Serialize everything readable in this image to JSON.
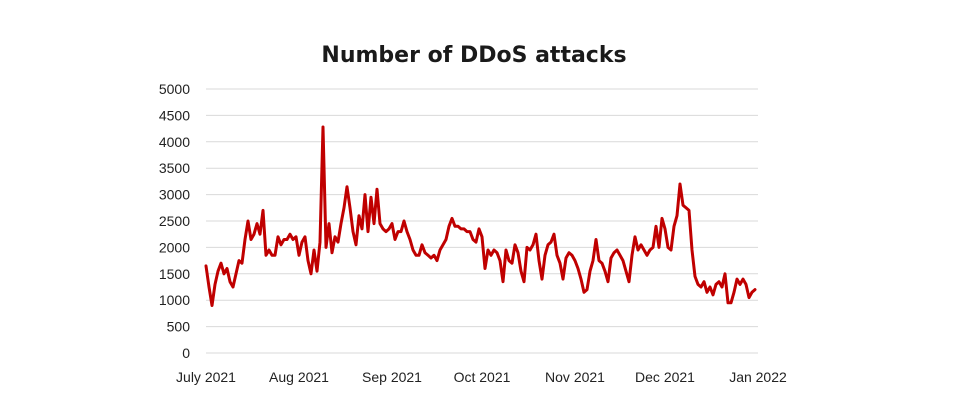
{
  "chart_data": {
    "type": "line",
    "title": "Number of DDoS attacks",
    "xlabel": "",
    "ylabel": "",
    "ylim": [
      0,
      5000
    ],
    "yticks": [
      0,
      500,
      1000,
      1500,
      2000,
      2500,
      3000,
      3500,
      4000,
      4500,
      5000
    ],
    "xlim": [
      "2021-07-01",
      "2022-01-01"
    ],
    "xticks": [
      {
        "date": "2021-07-01",
        "label": "July 2021"
      },
      {
        "date": "2021-08-01",
        "label": "Aug 2021"
      },
      {
        "date": "2021-09-01",
        "label": "Sep 2021"
      },
      {
        "date": "2021-10-01",
        "label": "Oct 2021"
      },
      {
        "date": "2021-11-01",
        "label": "Nov 2021"
      },
      {
        "date": "2021-12-01",
        "label": "Dec 2021"
      },
      {
        "date": "2022-01-01",
        "label": "Jan 2022"
      }
    ],
    "grid": true,
    "legend": "none",
    "series": [
      {
        "name": "",
        "color": "#c00000",
        "points": [
          [
            "2021-07-01",
            1650
          ],
          [
            "2021-07-02",
            1250
          ],
          [
            "2021-07-03",
            900
          ],
          [
            "2021-07-04",
            1300
          ],
          [
            "2021-07-05",
            1550
          ],
          [
            "2021-07-06",
            1700
          ],
          [
            "2021-07-07",
            1500
          ],
          [
            "2021-07-08",
            1600
          ],
          [
            "2021-07-09",
            1350
          ],
          [
            "2021-07-10",
            1250
          ],
          [
            "2021-07-11",
            1500
          ],
          [
            "2021-07-12",
            1750
          ],
          [
            "2021-07-13",
            1700
          ],
          [
            "2021-07-14",
            2150
          ],
          [
            "2021-07-15",
            2500
          ],
          [
            "2021-07-16",
            2150
          ],
          [
            "2021-07-17",
            2250
          ],
          [
            "2021-07-18",
            2450
          ],
          [
            "2021-07-19",
            2250
          ],
          [
            "2021-07-20",
            2700
          ],
          [
            "2021-07-21",
            1850
          ],
          [
            "2021-07-22",
            1950
          ],
          [
            "2021-07-23",
            1850
          ],
          [
            "2021-07-24",
            1850
          ],
          [
            "2021-07-25",
            2200
          ],
          [
            "2021-07-26",
            2050
          ],
          [
            "2021-07-27",
            2150
          ],
          [
            "2021-07-28",
            2150
          ],
          [
            "2021-07-29",
            2250
          ],
          [
            "2021-07-30",
            2150
          ],
          [
            "2021-07-31",
            2200
          ],
          [
            "2021-08-01",
            1850
          ],
          [
            "2021-08-02",
            2100
          ],
          [
            "2021-08-03",
            2200
          ],
          [
            "2021-08-04",
            1750
          ],
          [
            "2021-08-05",
            1500
          ],
          [
            "2021-08-06",
            1950
          ],
          [
            "2021-08-07",
            1550
          ],
          [
            "2021-08-08",
            2100
          ],
          [
            "2021-08-09",
            4280
          ],
          [
            "2021-08-10",
            2000
          ],
          [
            "2021-08-11",
            2450
          ],
          [
            "2021-08-12",
            1900
          ],
          [
            "2021-08-13",
            2200
          ],
          [
            "2021-08-14",
            2100
          ],
          [
            "2021-08-15",
            2450
          ],
          [
            "2021-08-16",
            2750
          ],
          [
            "2021-08-17",
            3150
          ],
          [
            "2021-08-18",
            2750
          ],
          [
            "2021-08-19",
            2300
          ],
          [
            "2021-08-20",
            2050
          ],
          [
            "2021-08-21",
            2600
          ],
          [
            "2021-08-22",
            2350
          ],
          [
            "2021-08-23",
            3000
          ],
          [
            "2021-08-24",
            2300
          ],
          [
            "2021-08-25",
            2950
          ],
          [
            "2021-08-26",
            2450
          ],
          [
            "2021-08-27",
            3100
          ],
          [
            "2021-08-28",
            2450
          ],
          [
            "2021-08-29",
            2350
          ],
          [
            "2021-08-30",
            2300
          ],
          [
            "2021-08-31",
            2350
          ],
          [
            "2021-09-01",
            2450
          ],
          [
            "2021-09-02",
            2150
          ],
          [
            "2021-09-03",
            2300
          ],
          [
            "2021-09-04",
            2300
          ],
          [
            "2021-09-05",
            2500
          ],
          [
            "2021-09-06",
            2300
          ],
          [
            "2021-09-07",
            2150
          ],
          [
            "2021-09-08",
            1950
          ],
          [
            "2021-09-09",
            1850
          ],
          [
            "2021-09-10",
            1850
          ],
          [
            "2021-09-11",
            2050
          ],
          [
            "2021-09-12",
            1900
          ],
          [
            "2021-09-13",
            1850
          ],
          [
            "2021-09-14",
            1800
          ],
          [
            "2021-09-15",
            1850
          ],
          [
            "2021-09-16",
            1750
          ],
          [
            "2021-09-17",
            1950
          ],
          [
            "2021-09-18",
            2050
          ],
          [
            "2021-09-19",
            2150
          ],
          [
            "2021-09-20",
            2400
          ],
          [
            "2021-09-21",
            2550
          ],
          [
            "2021-09-22",
            2400
          ],
          [
            "2021-09-23",
            2400
          ],
          [
            "2021-09-24",
            2350
          ],
          [
            "2021-09-25",
            2350
          ],
          [
            "2021-09-26",
            2300
          ],
          [
            "2021-09-27",
            2300
          ],
          [
            "2021-09-28",
            2150
          ],
          [
            "2021-09-29",
            2100
          ],
          [
            "2021-09-30",
            2350
          ],
          [
            "2021-10-01",
            2200
          ],
          [
            "2021-10-02",
            1600
          ],
          [
            "2021-10-03",
            1950
          ],
          [
            "2021-10-04",
            1850
          ],
          [
            "2021-10-05",
            1950
          ],
          [
            "2021-10-06",
            1900
          ],
          [
            "2021-10-07",
            1750
          ],
          [
            "2021-10-08",
            1350
          ],
          [
            "2021-10-09",
            1950
          ],
          [
            "2021-10-10",
            1750
          ],
          [
            "2021-10-11",
            1700
          ],
          [
            "2021-10-12",
            2050
          ],
          [
            "2021-10-13",
            1900
          ],
          [
            "2021-10-14",
            1550
          ],
          [
            "2021-10-15",
            1350
          ],
          [
            "2021-10-16",
            2000
          ],
          [
            "2021-10-17",
            1950
          ],
          [
            "2021-10-18",
            2050
          ],
          [
            "2021-10-19",
            2250
          ],
          [
            "2021-10-20",
            1750
          ],
          [
            "2021-10-21",
            1400
          ],
          [
            "2021-10-22",
            1850
          ],
          [
            "2021-10-23",
            2050
          ],
          [
            "2021-10-24",
            2100
          ],
          [
            "2021-10-25",
            2250
          ],
          [
            "2021-10-26",
            1850
          ],
          [
            "2021-10-27",
            1700
          ],
          [
            "2021-10-28",
            1400
          ],
          [
            "2021-10-29",
            1800
          ],
          [
            "2021-10-30",
            1900
          ],
          [
            "2021-10-31",
            1850
          ],
          [
            "2021-11-01",
            1750
          ],
          [
            "2021-11-02",
            1600
          ],
          [
            "2021-11-03",
            1400
          ],
          [
            "2021-11-04",
            1150
          ],
          [
            "2021-11-05",
            1200
          ],
          [
            "2021-11-06",
            1550
          ],
          [
            "2021-11-07",
            1750
          ],
          [
            "2021-11-08",
            2150
          ],
          [
            "2021-11-09",
            1750
          ],
          [
            "2021-11-10",
            1700
          ],
          [
            "2021-11-11",
            1550
          ],
          [
            "2021-11-12",
            1350
          ],
          [
            "2021-11-13",
            1800
          ],
          [
            "2021-11-14",
            1900
          ],
          [
            "2021-11-15",
            1950
          ],
          [
            "2021-11-16",
            1850
          ],
          [
            "2021-11-17",
            1750
          ],
          [
            "2021-11-18",
            1550
          ],
          [
            "2021-11-19",
            1350
          ],
          [
            "2021-11-20",
            1850
          ],
          [
            "2021-11-21",
            2200
          ],
          [
            "2021-11-22",
            1950
          ],
          [
            "2021-11-23",
            2050
          ],
          [
            "2021-11-24",
            1950
          ],
          [
            "2021-11-25",
            1850
          ],
          [
            "2021-11-26",
            1950
          ],
          [
            "2021-11-27",
            2000
          ],
          [
            "2021-11-28",
            2400
          ],
          [
            "2021-11-29",
            2000
          ],
          [
            "2021-11-30",
            2550
          ],
          [
            "2021-12-01",
            2350
          ],
          [
            "2021-12-02",
            2000
          ],
          [
            "2021-12-03",
            1950
          ],
          [
            "2021-12-04",
            2400
          ],
          [
            "2021-12-05",
            2600
          ],
          [
            "2021-12-06",
            3200
          ],
          [
            "2021-12-07",
            2800
          ],
          [
            "2021-12-08",
            2750
          ],
          [
            "2021-12-09",
            2700
          ],
          [
            "2021-12-10",
            1950
          ],
          [
            "2021-12-11",
            1450
          ],
          [
            "2021-12-12",
            1300
          ],
          [
            "2021-12-13",
            1250
          ],
          [
            "2021-12-14",
            1350
          ],
          [
            "2021-12-15",
            1150
          ],
          [
            "2021-12-16",
            1250
          ],
          [
            "2021-12-17",
            1100
          ],
          [
            "2021-12-18",
            1300
          ],
          [
            "2021-12-19",
            1350
          ],
          [
            "2021-12-20",
            1250
          ],
          [
            "2021-12-21",
            1500
          ],
          [
            "2021-12-22",
            950
          ],
          [
            "2021-12-23",
            950
          ],
          [
            "2021-12-24",
            1150
          ],
          [
            "2021-12-25",
            1400
          ],
          [
            "2021-12-26",
            1300
          ],
          [
            "2021-12-27",
            1400
          ],
          [
            "2021-12-28",
            1300
          ],
          [
            "2021-12-29",
            1050
          ],
          [
            "2021-12-30",
            1150
          ],
          [
            "2021-12-31",
            1200
          ]
        ]
      }
    ]
  }
}
